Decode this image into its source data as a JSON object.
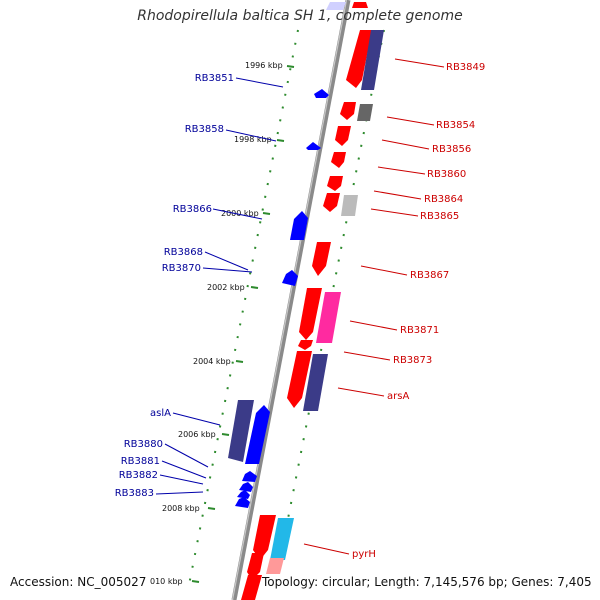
{
  "title": "Rhodopirellula baltica SH 1, complete genome",
  "footer": {
    "accession": "Accession: NC_005027",
    "topology": "Topology: circular; Length: 7,145,576 bp; Genes: 7,405"
  },
  "colors": {
    "backbone": "#8a8a8a",
    "tick": "#2e8b2e",
    "forward_label": "#000099",
    "reverse_label": "#cc0000",
    "gene_red": "#ff0000",
    "gene_blue": "#0000ff",
    "gene_navy": "#3b3b88",
    "gene_pink": "#ff2aa0",
    "gene_gray": "#666666",
    "gene_cyan": "#22b8e8"
  },
  "scale_labels": [
    "1996 kbp",
    "1998 kbp",
    "2000 kbp",
    "2002 kbp",
    "2004 kbp",
    "2006 kbp",
    "2008 kbp",
    "010 kbp"
  ],
  "forward_labels": [
    "RB3851",
    "RB3858",
    "RB3866",
    "RB3868",
    "RB3870",
    "aslA",
    "RB3880",
    "RB3881",
    "RB3882",
    "RB3883"
  ],
  "reverse_labels": [
    "RB3849",
    "RB3854",
    "RB3856",
    "RB3860",
    "RB3864",
    "RB3865",
    "RB3867",
    "RB3871",
    "RB3873",
    "arsA",
    "pyrH"
  ]
}
